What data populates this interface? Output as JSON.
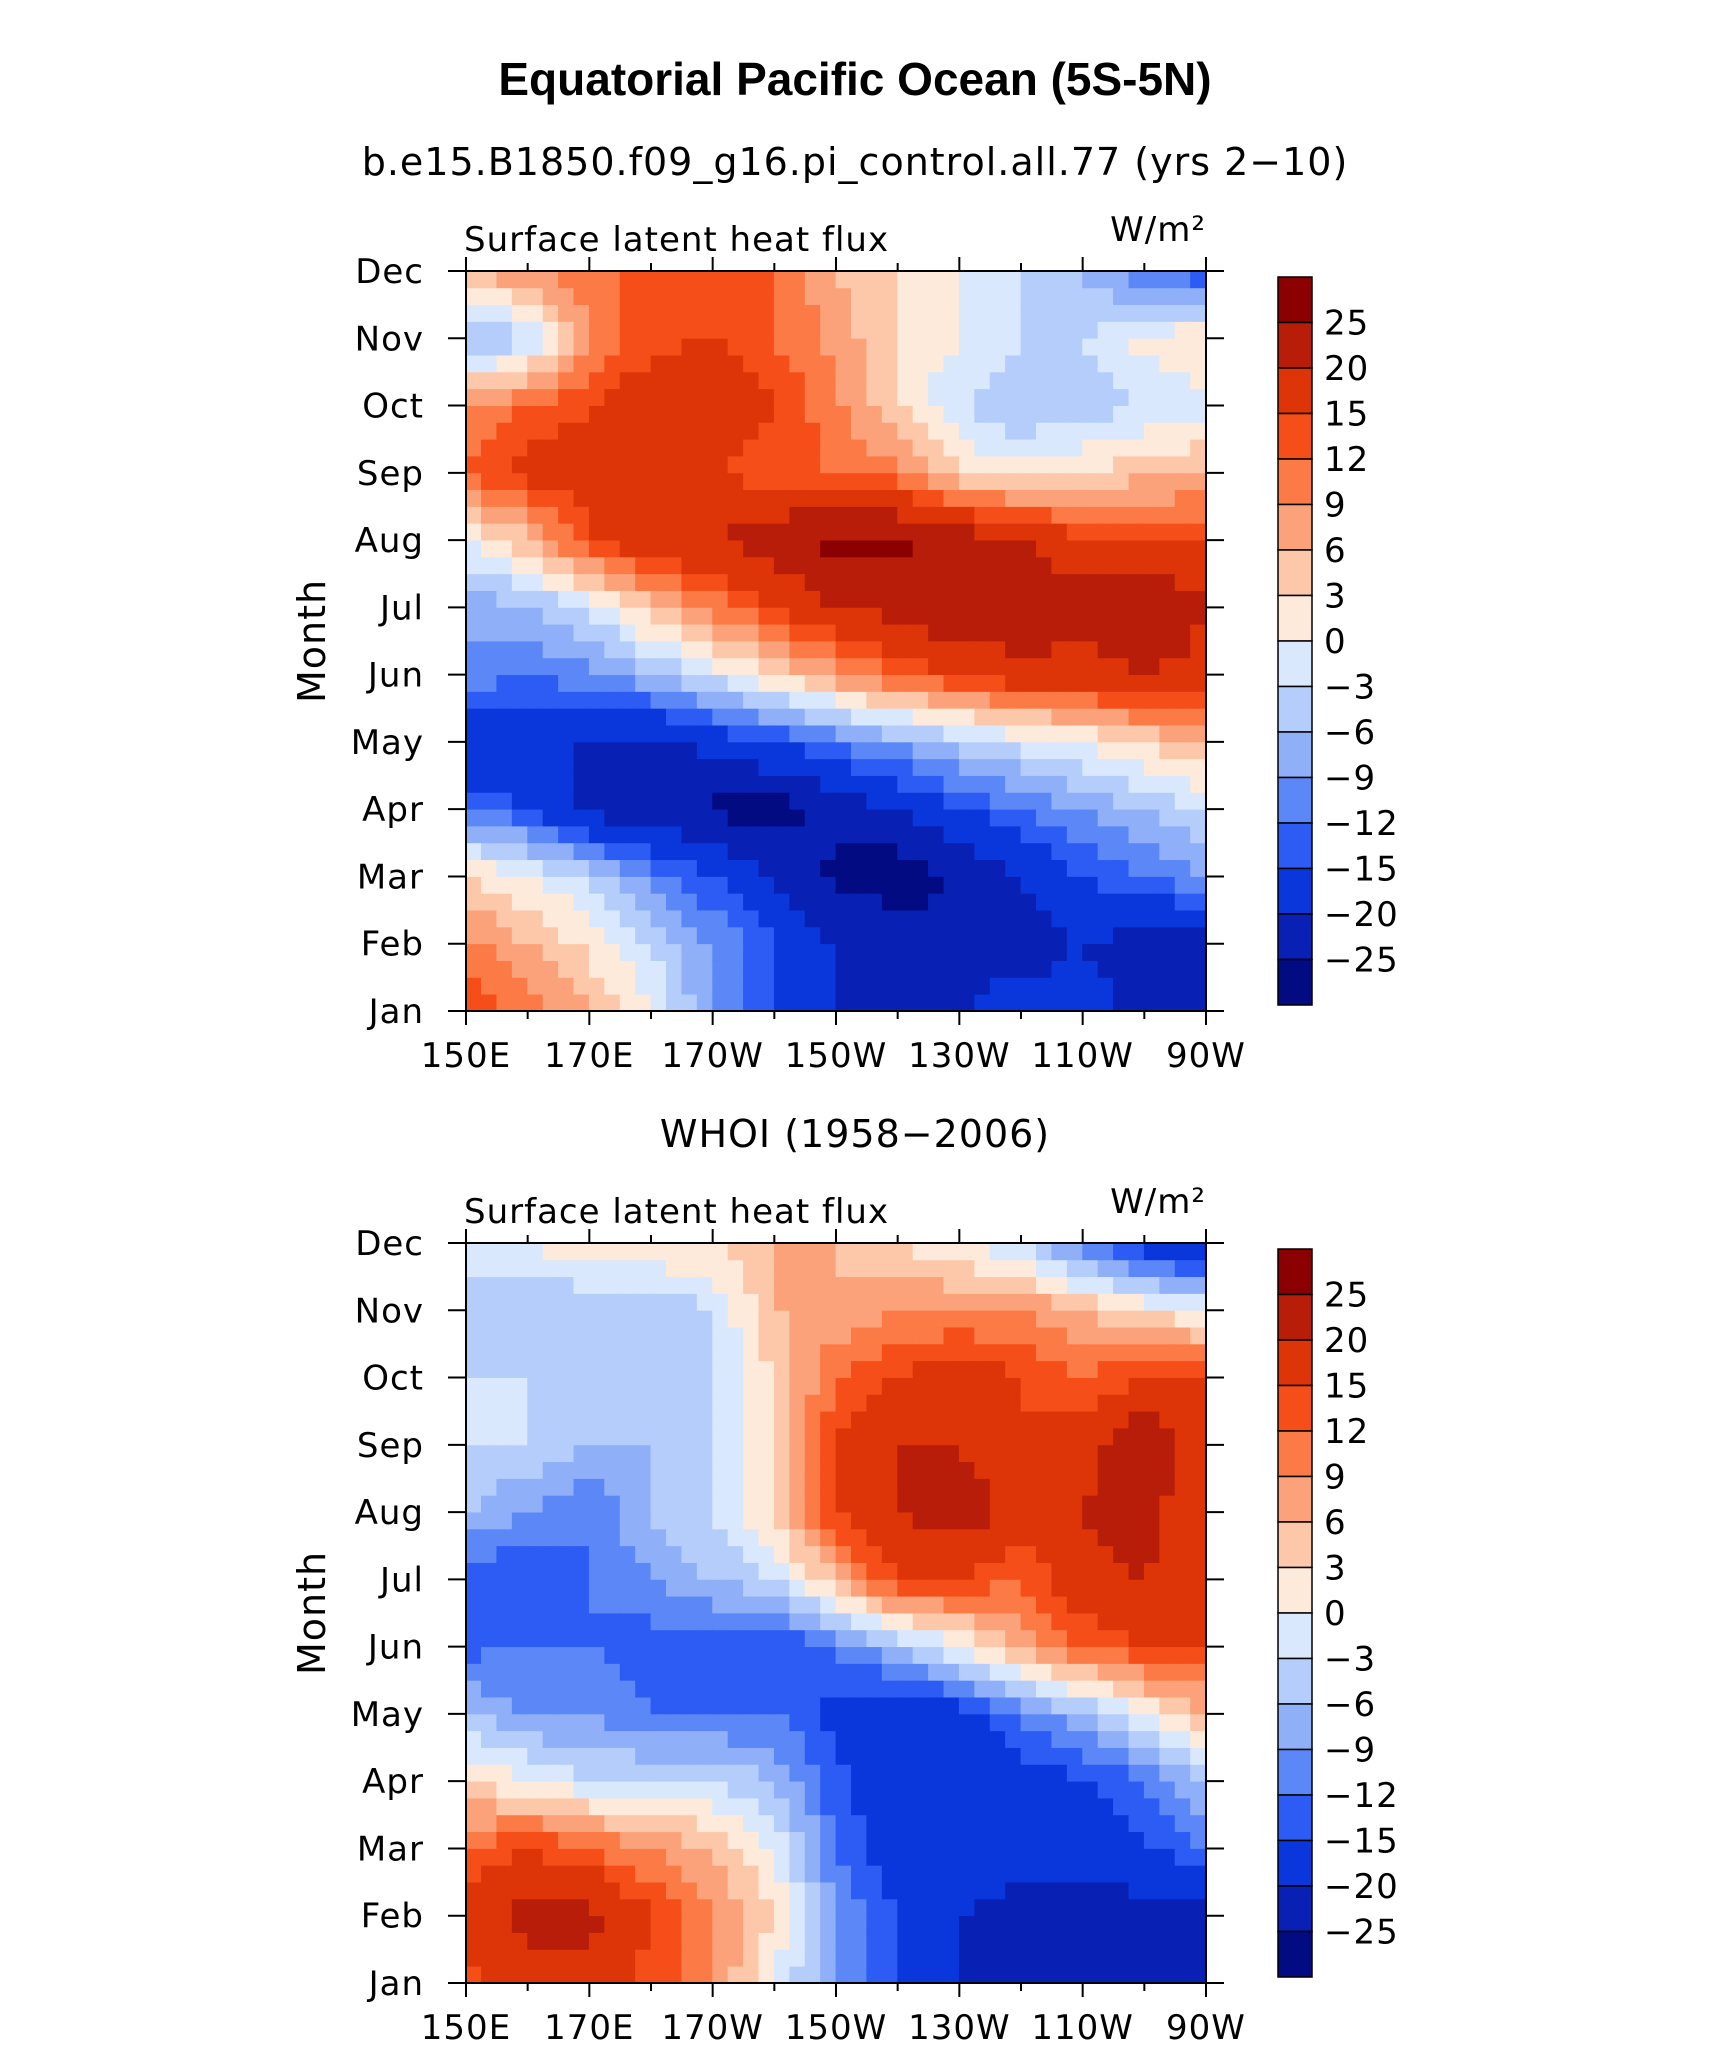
{
  "figure": {
    "title": "Equatorial Pacific Ocean (5S-5N)"
  },
  "colorbar": {
    "label_values": [
      "25",
      "20",
      "15",
      "12",
      "9",
      "6",
      "3",
      "0",
      "−3",
      "−6",
      "−9",
      "−12",
      "−15",
      "−20",
      "−25"
    ],
    "colors_top_to_bottom": [
      "#8b0000",
      "#b81d0a",
      "#de3508",
      "#f64e18",
      "#fb7a45",
      "#fca27a",
      "#fdc8a9",
      "#fdeadb",
      "#d9e8fc",
      "#b4cdfb",
      "#8fb0f8",
      "#5c87f7",
      "#2c5cf3",
      "#0a37dc",
      "#0820b4",
      "#020b82"
    ]
  },
  "x_ticks": [
    "150E",
    "170E",
    "170W",
    "150W",
    "130W",
    "110W",
    "90W"
  ],
  "y_ticks": [
    "Jan",
    "Feb",
    "Mar",
    "Apr",
    "May",
    "Jun",
    "Jul",
    "Aug",
    "Sep",
    "Oct",
    "Nov",
    "Dec"
  ],
  "chart_data": [
    {
      "type": "heatmap",
      "subtitle": "b.e15.B1850.f09_g16.pi_control.all.77 (yrs 2−10)",
      "variable_label": "Surface latent heat flux",
      "units": "W/m²",
      "ylabel": "Month",
      "x": [
        "150E",
        "160E",
        "170E",
        "180",
        "170W",
        "160W",
        "150W",
        "140W",
        "130W",
        "120W",
        "110W",
        "100W",
        "90W"
      ],
      "y": [
        "Jan",
        "Feb",
        "Mar",
        "Apr",
        "May",
        "Jun",
        "Jul",
        "Aug",
        "Sep",
        "Oct",
        "Nov",
        "Dec"
      ],
      "levels": [
        -25,
        -20,
        -15,
        -12,
        -9,
        -6,
        -3,
        0,
        3,
        6,
        9,
        12,
        15,
        20,
        25
      ],
      "z": [
        [
          15,
          10,
          6,
          0,
          -9,
          -15,
          -20,
          -22,
          -20,
          -18,
          -18,
          -22,
          -22
        ],
        [
          10,
          6,
          2,
          -3,
          -9,
          -15,
          -20,
          -22,
          -22,
          -22,
          -20,
          -22,
          -22
        ],
        [
          3,
          0,
          -3,
          -10,
          -15,
          -20,
          -26,
          -28,
          -25,
          -20,
          -15,
          -12,
          -9
        ],
        [
          -12,
          -15,
          -22,
          -24,
          -26,
          -27,
          -24,
          -20,
          -15,
          -12,
          -9,
          -6,
          -3
        ],
        [
          -20,
          -20,
          -20,
          -22,
          -18,
          -15,
          -12,
          -8,
          -5,
          -2,
          0,
          3,
          6
        ],
        [
          -10,
          -12,
          -10,
          -6,
          -2,
          3,
          8,
          12,
          15,
          18,
          18,
          20,
          18
        ],
        [
          -8,
          -6,
          -3,
          5,
          10,
          15,
          20,
          22,
          25,
          25,
          22,
          26,
          20
        ],
        [
          0,
          5,
          15,
          18,
          20,
          23,
          27,
          26,
          24,
          20,
          16,
          15,
          15
        ],
        [
          12,
          17,
          17,
          17,
          15,
          13,
          12,
          10,
          3,
          1,
          3,
          5,
          6
        ],
        [
          9,
          12,
          15,
          18,
          20,
          15,
          10,
          3,
          -3,
          -6,
          -5,
          -3,
          -1
        ],
        [
          -8,
          -4,
          9,
          14,
          15,
          12,
          8,
          3,
          0,
          -3,
          -3,
          1,
          3
        ],
        [
          6,
          9,
          12,
          12,
          12,
          12,
          6,
          3,
          0,
          -3,
          -6,
          -12,
          -15
        ]
      ]
    },
    {
      "type": "heatmap",
      "subtitle": "WHOI (1958−2006)",
      "variable_label": "Surface latent heat flux",
      "units": "W/m²",
      "ylabel": "Month",
      "x": [
        "150E",
        "160E",
        "170E",
        "180",
        "170W",
        "160W",
        "150W",
        "140W",
        "130W",
        "120W",
        "110W",
        "100W",
        "90W"
      ],
      "y": [
        "Jan",
        "Feb",
        "Mar",
        "Apr",
        "May",
        "Jun",
        "Jul",
        "Aug",
        "Sep",
        "Oct",
        "Nov",
        "Dec"
      ],
      "levels": [
        -25,
        -20,
        -15,
        -12,
        -9,
        -6,
        -3,
        0,
        3,
        6,
        9,
        12,
        15,
        20,
        25
      ],
      "z": [
        [
          14,
          17,
          17,
          14,
          9,
          0,
          -9,
          -15,
          -20,
          -22,
          -22,
          -22,
          -25
        ],
        [
          17,
          22,
          22,
          15,
          9,
          3,
          -9,
          -15,
          -20,
          -22,
          -22,
          -22,
          -22
        ],
        [
          12,
          15,
          12,
          9,
          6,
          0,
          -12,
          -18,
          -18,
          -17,
          -18,
          -16,
          -12
        ],
        [
          3,
          0,
          -3,
          -3,
          -3,
          -6,
          -14,
          -20,
          -20,
          -17,
          -16,
          -12,
          -6
        ],
        [
          -6,
          -9,
          -9,
          -12,
          -12,
          -12,
          -16,
          -20,
          -18,
          -12,
          -6,
          0,
          6
        ],
        [
          -13,
          -12,
          -12,
          -14,
          -14,
          -15,
          -12,
          -6,
          0,
          6,
          12,
          15,
          15
        ],
        [
          -14,
          -15,
          -12,
          -9,
          -6,
          -3,
          6,
          15,
          15,
          12,
          18,
          20,
          15
        ],
        [
          -6,
          -9,
          -12,
          -6,
          -3,
          3,
          15,
          20,
          23,
          18,
          20,
          22,
          15
        ],
        [
          -3,
          -3,
          -6,
          -6,
          -3,
          3,
          15,
          20,
          20,
          15,
          18,
          25,
          15
        ],
        [
          -3,
          -3,
          -6,
          -6,
          -3,
          3,
          12,
          15,
          18,
          15,
          12,
          15,
          15
        ],
        [
          -6,
          -6,
          -6,
          -6,
          -3,
          6,
          6,
          9,
          9,
          9,
          6,
          3,
          0
        ],
        [
          0,
          0,
          3,
          3,
          3,
          6,
          6,
          3,
          0,
          -3,
          -12,
          -18,
          -22
        ]
      ]
    }
  ]
}
